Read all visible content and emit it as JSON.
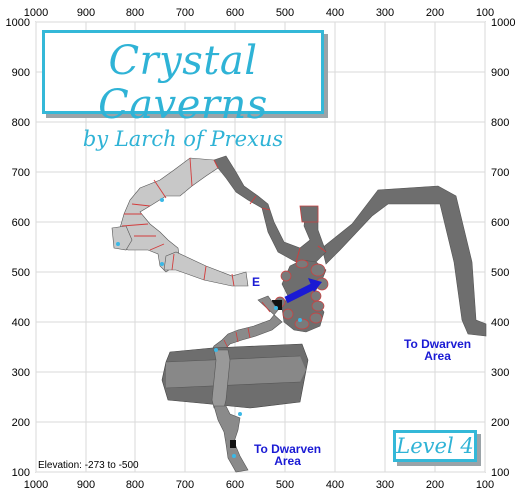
{
  "title": "Crystal Caverns",
  "subtitle": "by Larch of Prexus",
  "level_label": "Level 4",
  "elevation_text": "Elevation: -273 to -500",
  "exit_northeast": {
    "line1": "To Dwarven",
    "line2": "Area"
  },
  "exit_south": {
    "line1": "To Dwarven",
    "line2": "Area"
  },
  "entrance_marker": "E",
  "x_ticks_top": [
    "1000",
    "900",
    "800",
    "700",
    "600",
    "500",
    "400",
    "300",
    "200",
    "100"
  ],
  "x_ticks_bottom": [
    "1000",
    "900",
    "800",
    "700",
    "600",
    "500",
    "400",
    "300",
    "200",
    "100"
  ],
  "y_ticks_left": [
    "1000",
    "900",
    "800",
    "700",
    "600",
    "500",
    "400",
    "300",
    "200",
    "100"
  ],
  "y_ticks_right": [
    "1000",
    "900",
    "800",
    "700",
    "600",
    "500",
    "400",
    "300",
    "200",
    "100"
  ],
  "colors": {
    "accent": "#34b8d8",
    "tunnel_dark": "#6e6e6e",
    "tunnel_light": "#c8c8c8",
    "passage_red": "#d23c3c",
    "exit_blue": "#1a1ad4"
  }
}
